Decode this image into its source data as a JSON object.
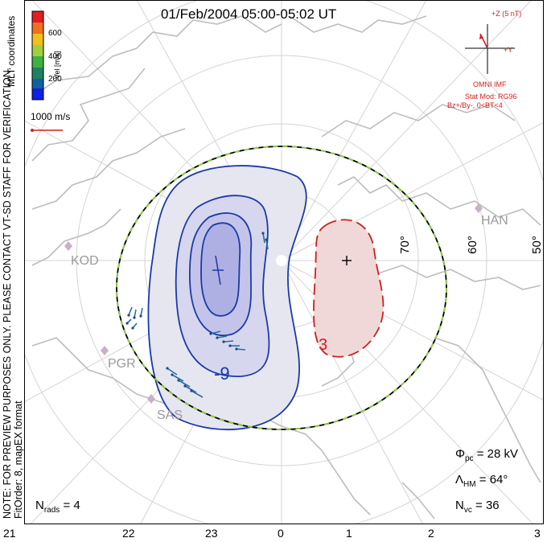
{
  "title": "01/Feb/2004 05:00-05:02 UT",
  "side_note_1": "NOTE: FOR PREVIEW PURPOSES ONLY. PLEASE CONTACT VT-SD STAFF FOR VERIFICATION.",
  "side_note_2": "FitOrder: 8, mapEX format",
  "colorbar": {
    "label": "MLT coordinates",
    "unit_label": "Vel [m/s]",
    "ticks": [
      "600",
      "400",
      "200"
    ],
    "colors": [
      "#e02020",
      "#f07020",
      "#f0c020",
      "#a0d040",
      "#40b040",
      "#208060",
      "#1060a0",
      "#1020e0"
    ]
  },
  "velocity_scale": "1000 m/s",
  "imf": {
    "z_label": "+Z (5 nT)",
    "y_label": "+Y",
    "source": "OMNI IMF",
    "stat_model": "Stat Mod: RG96",
    "condition": "Bz+/By-, 0<BT<4"
  },
  "stations": [
    "HAN",
    "KOD",
    "PGR",
    "SAS"
  ],
  "latitudes": [
    "70°",
    "60°",
    "50°"
  ],
  "contour_labels": [
    "-9",
    "3"
  ],
  "stats": {
    "phi_pc_symbol": "Φ",
    "phi_pc_sub": "pc",
    "phi_pc_value": "= 28 kV",
    "lambda_symbol": "Λ",
    "lambda_sub": "HM",
    "lambda_value": "= 64°",
    "nvc_symbol": "N",
    "nvc_sub": "vc",
    "nvc_value": "= 36",
    "nrads_symbol": "N",
    "nrads_sub": "rads",
    "nrads_value": "= 4"
  },
  "mlt_axis": [
    "21",
    "22",
    "23",
    "0",
    "1",
    "2",
    "3"
  ]
}
